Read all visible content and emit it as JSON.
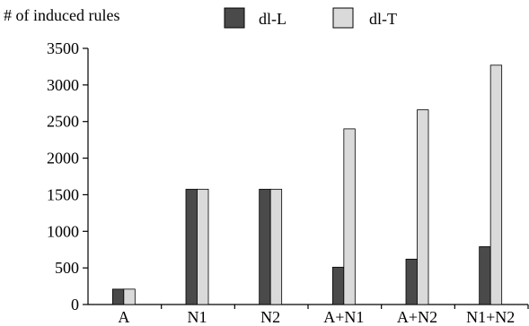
{
  "chart_data": {
    "type": "bar",
    "ylabel": "# of induced rules",
    "xlabel": "",
    "title": "",
    "categories": [
      "A",
      "N1",
      "N2",
      "A+N1",
      "A+N2",
      "N1+N2"
    ],
    "series": [
      {
        "name": "dl-L",
        "values": [
          210,
          1575,
          1575,
          510,
          620,
          790
        ],
        "color": "#4a4a4a"
      },
      {
        "name": "dl-T",
        "values": [
          210,
          1575,
          1575,
          2400,
          2660,
          3270
        ],
        "color": "#dadada"
      }
    ],
    "ylim": [
      0,
      3500
    ],
    "yticks": [
      0,
      500,
      1000,
      1500,
      2000,
      2500,
      3000,
      3500
    ],
    "grid": false,
    "legend_position": "top"
  }
}
